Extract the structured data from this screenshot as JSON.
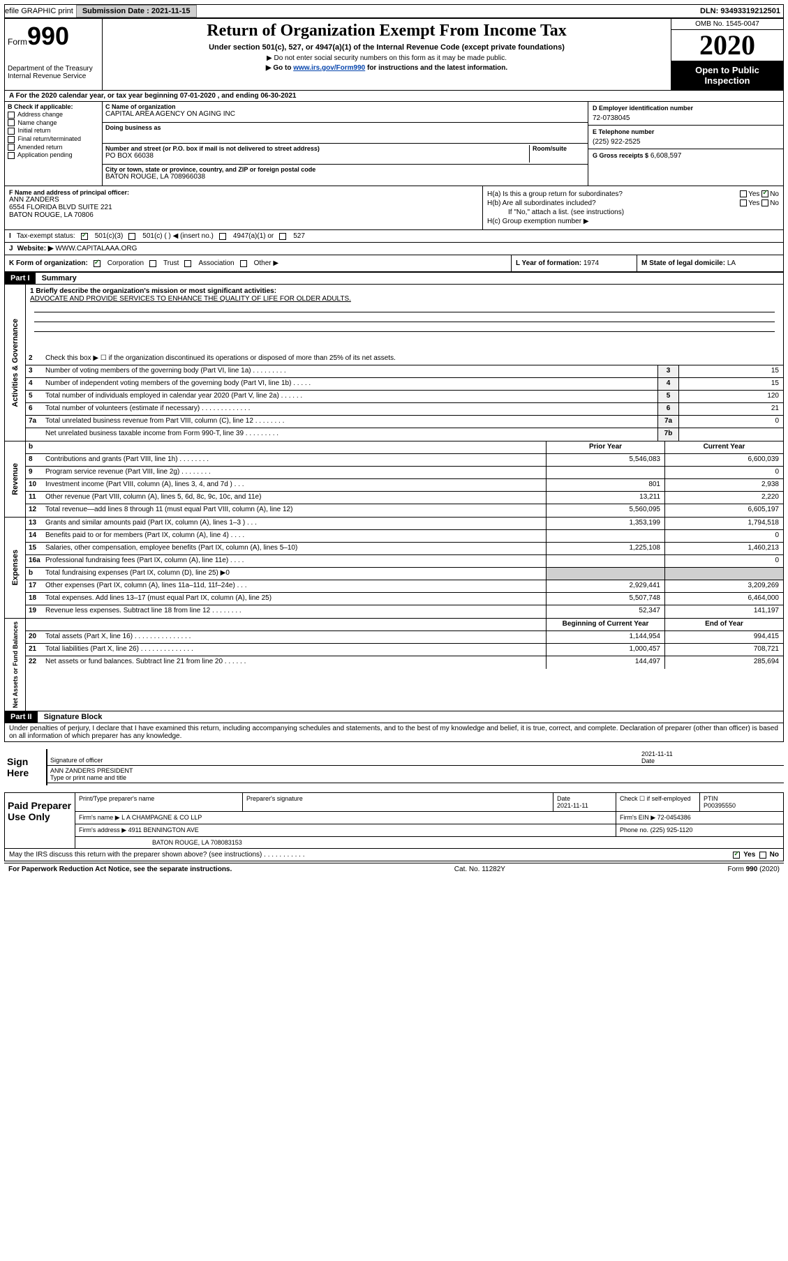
{
  "topbar": {
    "efile": "efile GRAPHIC print",
    "sub_label": "Submission Date :",
    "sub_date": "2021-11-15",
    "dln": "DLN: 93493319212501"
  },
  "header": {
    "form_word": "Form",
    "form_num": "990",
    "dept": "Department of the Treasury\nInternal Revenue Service",
    "title": "Return of Organization Exempt From Income Tax",
    "sub": "Under section 501(c), 527, or 4947(a)(1) of the Internal Revenue Code (except private foundations)",
    "note1": "▶ Do not enter social security numbers on this form as it may be made public.",
    "note2_pre": "▶ Go to ",
    "note2_link": "www.irs.gov/Form990",
    "note2_post": " for instructions and the latest information.",
    "omb": "OMB No. 1545-0047",
    "year": "2020",
    "open": "Open to Public Inspection"
  },
  "period": "For the 2020 calendar year, or tax year beginning 07-01-2020    , and ending 06-30-2021",
  "boxB": {
    "hdr": "B Check if applicable:",
    "items": [
      "Address change",
      "Name change",
      "Initial return",
      "Final return/terminated",
      "Amended return",
      "Application pending"
    ]
  },
  "boxC": {
    "name_lbl": "C Name of organization",
    "name": "CAPITAL AREA AGENCY ON AGING INC",
    "dba_lbl": "Doing business as",
    "street_lbl": "Number and street (or P.O. box if mail is not delivered to street address)",
    "room_lbl": "Room/suite",
    "street": "PO BOX 66038",
    "city_lbl": "City or town, state or province, country, and ZIP or foreign postal code",
    "city": "BATON ROUGE, LA   708966038"
  },
  "boxD": {
    "ein_lbl": "D Employer identification number",
    "ein": "72-0738045",
    "tel_lbl": "E Telephone number",
    "tel": "(225) 922-2525",
    "gross_lbl": "G Gross receipts $",
    "gross": "6,608,597"
  },
  "boxF": {
    "lbl": "F  Name and address of principal officer:",
    "name": "ANN ZANDERS",
    "addr1": "6554 FLORIDA BLVD SUITE 221",
    "addr2": "BATON ROUGE, LA   70806"
  },
  "boxH": {
    "a": "H(a)  Is this a group return for subordinates?",
    "b": "H(b)  Are all subordinates included?",
    "b_note": "If \"No,\" attach a list. (see instructions)",
    "c": "H(c)  Group exemption number ▶",
    "yes": "Yes",
    "no": "No"
  },
  "taxExempt": {
    "lbl": "Tax-exempt status:",
    "c501c3": "501(c)(3)",
    "c501c": "501(c) (  ) ◀ (insert no.)",
    "c4947": "4947(a)(1) or",
    "c527": "527"
  },
  "boxJ": {
    "lbl": "J",
    "txt": "Website: ▶",
    "url": "WWW.CAPITALAAA.ORG"
  },
  "boxK": {
    "lbl": "K Form of organization:",
    "corp": "Corporation",
    "trust": "Trust",
    "assoc": "Association",
    "other": "Other ▶"
  },
  "boxL": {
    "lbl": "L Year of formation:",
    "val": "1974"
  },
  "boxM": {
    "lbl": "M State of legal domicile:",
    "val": "LA"
  },
  "part1": {
    "hdr": "Part I",
    "title": "Summary"
  },
  "summary": {
    "line1_lbl": "1  Briefly describe the organization's mission or most significant activities:",
    "line1_val": "ADVOCATE AND PROVIDE SERVICES TO ENHANCE THE QUALITY OF LIFE FOR OLDER ADULTS.",
    "line2": "Check this box ▶ ☐  if the organization discontinued its operations or disposed of more than 25% of its net assets."
  },
  "govLines": [
    {
      "n": "3",
      "d": "Number of voting members of the governing body (Part VI, line 1a)   .    .    .    .    .    .    .    .    .",
      "b": "3",
      "v": "15"
    },
    {
      "n": "4",
      "d": "Number of independent voting members of the governing body (Part VI, line 1b)   .    .    .    .    .",
      "b": "4",
      "v": "15"
    },
    {
      "n": "5",
      "d": "Total number of individuals employed in calendar year 2020 (Part V, line 2a)   .    .    .    .    .    .",
      "b": "5",
      "v": "120"
    },
    {
      "n": "6",
      "d": "Total number of volunteers (estimate if necessary)   .    .    .    .    .    .    .    .    .    .    .    .    .",
      "b": "6",
      "v": "21"
    },
    {
      "n": "7a",
      "d": "Total unrelated business revenue from Part VIII, column (C), line 12   .    .    .    .    .    .    .    .",
      "b": "7a",
      "v": "0"
    },
    {
      "n": "",
      "d": "Net unrelated business taxable income from Form 990-T, line 39   .    .    .    .    .    .    .    .    .",
      "b": "7b",
      "v": ""
    }
  ],
  "colHdrs": {
    "b": "b",
    "prior": "Prior Year",
    "current": "Current Year"
  },
  "revLines": [
    {
      "n": "8",
      "d": "Contributions and grants (Part VIII, line 1h)   .    .    .    .    .    .    .    .",
      "p": "5,546,083",
      "c": "6,600,039"
    },
    {
      "n": "9",
      "d": "Program service revenue (Part VIII, line 2g)   .    .    .    .    .    .    .    .",
      "p": "",
      "c": "0"
    },
    {
      "n": "10",
      "d": "Investment income (Part VIII, column (A), lines 3, 4, and 7d )   .    .    .",
      "p": "801",
      "c": "2,938"
    },
    {
      "n": "11",
      "d": "Other revenue (Part VIII, column (A), lines 5, 6d, 8c, 9c, 10c, and 11e)",
      "p": "13,211",
      "c": "2,220"
    },
    {
      "n": "12",
      "d": "Total revenue—add lines 8 through 11 (must equal Part VIII, column (A), line 12)",
      "p": "5,560,095",
      "c": "6,605,197"
    }
  ],
  "expLines": [
    {
      "n": "13",
      "d": "Grants and similar amounts paid (Part IX, column (A), lines 1–3 )   .    .    .",
      "p": "1,353,199",
      "c": "1,794,518"
    },
    {
      "n": "14",
      "d": "Benefits paid to or for members (Part IX, column (A), line 4)   .    .    .    .",
      "p": "",
      "c": "0"
    },
    {
      "n": "15",
      "d": "Salaries, other compensation, employee benefits (Part IX, column (A), lines 5–10)",
      "p": "1,225,108",
      "c": "1,460,213"
    },
    {
      "n": "16a",
      "d": "Professional fundraising fees (Part IX, column (A), line 11e)   .    .    .    .",
      "p": "",
      "c": "0"
    },
    {
      "n": "b",
      "d": "Total fundraising expenses (Part IX, column (D), line 25) ▶0",
      "p": "—",
      "c": "—"
    },
    {
      "n": "17",
      "d": "Other expenses (Part IX, column (A), lines 11a–11d, 11f–24e)   .    .    .",
      "p": "2,929,441",
      "c": "3,209,269"
    },
    {
      "n": "18",
      "d": "Total expenses. Add lines 13–17 (must equal Part IX, column (A), line 25)",
      "p": "5,507,748",
      "c": "6,464,000"
    },
    {
      "n": "19",
      "d": "Revenue less expenses. Subtract line 18 from line 12   .    .    .    .    .    .    .    .",
      "p": "52,347",
      "c": "141,197"
    }
  ],
  "netHdrs": {
    "prior": "Beginning of Current Year",
    "current": "End of Year"
  },
  "netLines": [
    {
      "n": "20",
      "d": "Total assets (Part X, line 16)   .    .    .    .    .    .    .    .    .    .    .    .    .    .    .",
      "p": "1,144,954",
      "c": "994,415"
    },
    {
      "n": "21",
      "d": "Total liabilities (Part X, line 26)   .    .    .    .    .    .    .    .    .    .    .    .    .    .",
      "p": "1,000,457",
      "c": "708,721"
    },
    {
      "n": "22",
      "d": "Net assets or fund balances. Subtract line 21 from line 20   .    .    .    .    .    .",
      "p": "144,497",
      "c": "285,694"
    }
  ],
  "vertLabels": {
    "gov": "Activities & Governance",
    "rev": "Revenue",
    "exp": "Expenses",
    "net": "Net Assets or Fund Balances"
  },
  "part2": {
    "hdr": "Part II",
    "title": "Signature Block"
  },
  "sigDecl": "Under penalties of perjury, I declare that I have examined this return, including accompanying schedules and statements, and to the best of my knowledge and belief, it is true, correct, and complete. Declaration of preparer (other than officer) is based on all information of which preparer has any knowledge.",
  "sign": {
    "here": "Sign Here",
    "sig_lbl": "Signature of officer",
    "date": "2021-11-11",
    "date_lbl": "Date",
    "name": "ANN ZANDERS PRESIDENT",
    "name_lbl": "Type or print name and title"
  },
  "prep": {
    "title": "Paid Preparer Use Only",
    "name_lbl": "Print/Type preparer's name",
    "sig_lbl": "Preparer's signature",
    "date_lbl": "Date",
    "date": "2021-11-11",
    "check_lbl": "Check ☐ if self-employed",
    "ptin_lbl": "PTIN",
    "ptin": "P00395550",
    "firm_name_lbl": "Firm's name    ▶",
    "firm_name": "L A CHAMPAGNE & CO LLP",
    "firm_ein_lbl": "Firm's EIN ▶",
    "firm_ein": "72-0454386",
    "firm_addr_lbl": "Firm's address ▶",
    "firm_addr1": "4911 BENNINGTON AVE",
    "firm_addr2": "BATON ROUGE, LA   708083153",
    "phone_lbl": "Phone no.",
    "phone": "(225) 925-1120"
  },
  "discuss": "May the IRS discuss this return with the preparer shown above? (see instructions)   .    .    .    .    .    .    .    .    .    .    .",
  "footer": {
    "left": "For Paperwork Reduction Act Notice, see the separate instructions.",
    "mid": "Cat. No. 11282Y",
    "right": "Form 990 (2020)"
  }
}
